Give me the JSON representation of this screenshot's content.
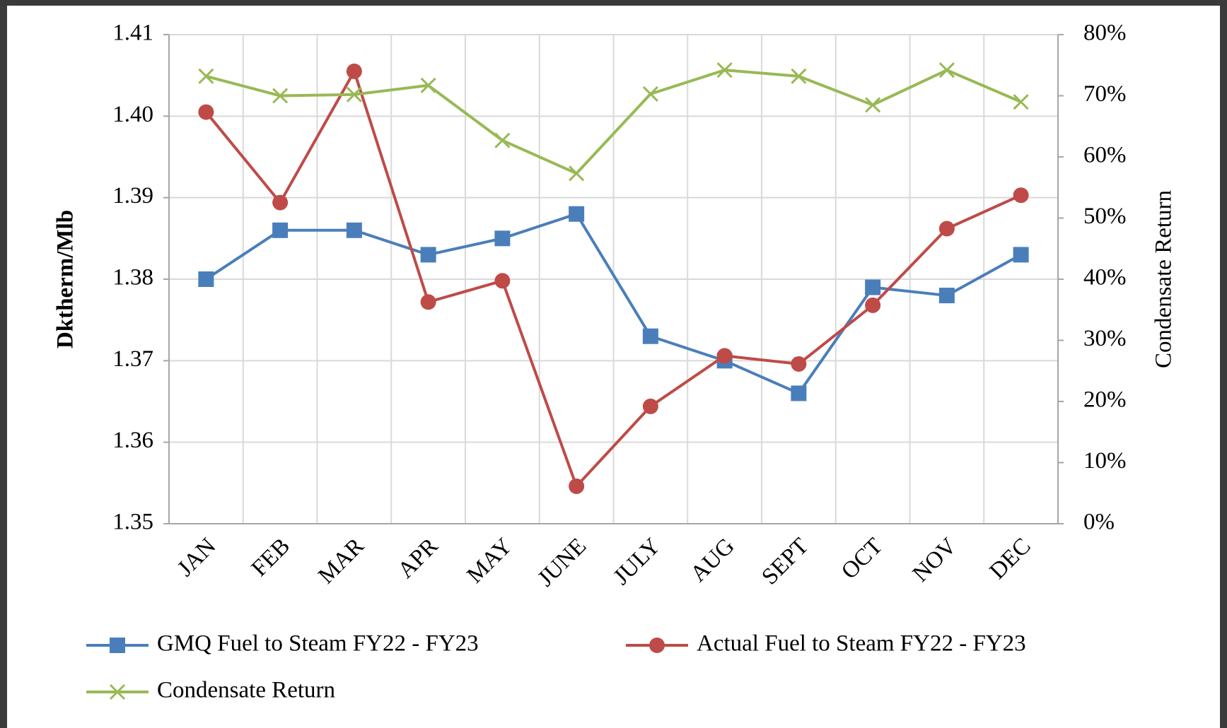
{
  "chart_data": {
    "type": "line",
    "categories": [
      "JAN",
      "FEB",
      "MAR",
      "APR",
      "MAY",
      "JUNE",
      "JULY",
      "AUG",
      "SEPT",
      "OCT",
      "NOV",
      "DEC"
    ],
    "series": [
      {
        "name": "GMQ Fuel to Steam FY22 - FY23",
        "color": "#4a7ebb",
        "marker": "square",
        "values": [
          1.38,
          1.386,
          1.386,
          1.383,
          1.385,
          1.388,
          1.373,
          1.37,
          1.366,
          1.379,
          1.378,
          1.383
        ]
      },
      {
        "name": "Actual Fuel to Steam FY22 - FY23",
        "color": "#be4b48",
        "marker": "circle",
        "values": [
          1.4005,
          1.3894,
          1.4055,
          1.3772,
          1.3798,
          1.3546,
          1.3644,
          1.3706,
          1.3696,
          1.3768,
          1.3862,
          1.3903
        ]
      },
      {
        "name": "Condensate Return",
        "color": "#98b954",
        "marker": "x",
        "axis": "y2",
        "values": [
          73.2,
          70.0,
          70.2,
          71.7,
          62.7,
          57.3,
          70.3,
          74.2,
          73.2,
          68.5,
          74.2,
          69.0
        ]
      }
    ],
    "ylabel": "Dktherm/Mlb",
    "y2label": "Condensate Return",
    "ylim": [
      1.35,
      1.41
    ],
    "yticks": [
      1.35,
      1.36,
      1.37,
      1.38,
      1.39,
      {
        "value": 1.4,
        "label": "1.40"
      },
      1.41
    ],
    "y2lim": [
      0,
      80
    ],
    "y2ticks": [
      {
        "value": 0,
        "label": "0%"
      },
      {
        "value": 10,
        "label": "10%"
      },
      {
        "value": 20,
        "label": "20%"
      },
      {
        "value": 30,
        "label": "30%"
      },
      {
        "value": 40,
        "label": "40%"
      },
      {
        "value": 50,
        "label": "50%"
      },
      {
        "value": 60,
        "label": "60%"
      },
      {
        "value": 70,
        "label": "70%"
      },
      {
        "value": 80,
        "label": "80%"
      }
    ],
    "grid": true
  }
}
